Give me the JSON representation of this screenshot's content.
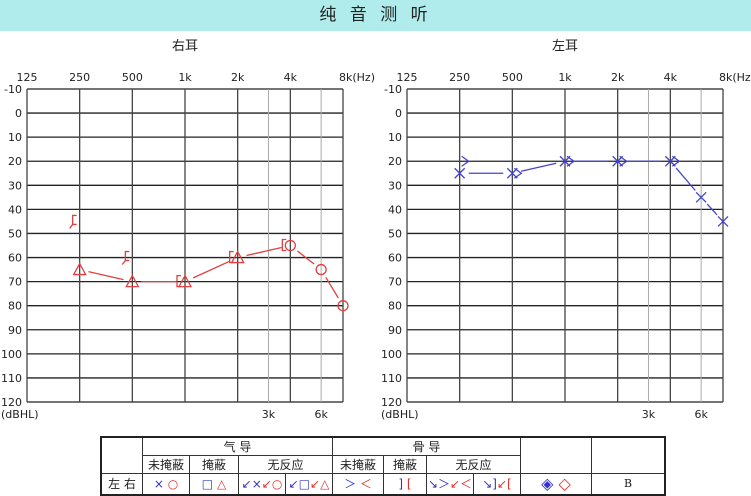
{
  "header": {
    "title": "纯 音 测 听"
  },
  "chart_data": [
    {
      "type": "line",
      "title": "右耳",
      "xlabel": "(Hz)",
      "ylabel": "(dBHL)",
      "x_ticks": [
        "125",
        "250",
        "500",
        "1k",
        "2k",
        "4k",
        "8k(Hz)"
      ],
      "x_sub_ticks": [
        "3k",
        "6k"
      ],
      "y_ticks": [
        "-10",
        "0",
        "10",
        "20",
        "30",
        "40",
        "50",
        "60",
        "70",
        "80",
        "90",
        "100",
        "110",
        "120"
      ],
      "ylim": [
        -10,
        120
      ],
      "y_inverted": true,
      "x_scale": "log2",
      "grid": true,
      "color": "#e04040",
      "series": [
        {
          "kind": "air-masked",
          "marker": "triangle",
          "points": [
            [
              250,
              65
            ],
            [
              500,
              70
            ],
            [
              1000,
              70
            ],
            [
              2000,
              60
            ]
          ]
        },
        {
          "kind": "air-unmasked",
          "marker": "circle",
          "points": [
            [
              4000,
              55
            ],
            [
              6000,
              65
            ],
            [
              8000,
              80
            ]
          ]
        },
        {
          "kind": "bone-masked",
          "marker": "bracket-left",
          "points": [
            [
              1000,
              70
            ],
            [
              2000,
              60
            ],
            [
              4000,
              55
            ]
          ]
        },
        {
          "kind": "bone-masked-no-response",
          "marker": "bracket-left-arrow",
          "points": [
            [
              250,
              45
            ],
            [
              500,
              60
            ]
          ]
        }
      ],
      "air_line": [
        [
          250,
          65
        ],
        [
          500,
          70
        ],
        [
          1000,
          70
        ],
        [
          2000,
          60
        ],
        [
          4000,
          55
        ],
        [
          6000,
          65
        ],
        [
          8000,
          80
        ]
      ]
    },
    {
      "type": "line",
      "title": "左耳",
      "xlabel": "(Hz)",
      "ylabel": "(dBHL)",
      "x_ticks": [
        "125",
        "250",
        "500",
        "1k",
        "2k",
        "4k",
        "8k(Hz)"
      ],
      "x_sub_ticks": [
        "3k",
        "6k"
      ],
      "y_ticks": [
        "-10",
        "0",
        "10",
        "20",
        "30",
        "40",
        "50",
        "60",
        "70",
        "80",
        "90",
        "100",
        "110",
        "120"
      ],
      "ylim": [
        -10,
        120
      ],
      "y_inverted": true,
      "x_scale": "log2",
      "grid": true,
      "color": "#4444cc",
      "series": [
        {
          "kind": "air-unmasked",
          "marker": "x",
          "points": [
            [
              250,
              25
            ],
            [
              500,
              25
            ],
            [
              1000,
              20
            ],
            [
              2000,
              20
            ],
            [
              4000,
              20
            ],
            [
              6000,
              35
            ],
            [
              8000,
              45
            ]
          ]
        },
        {
          "kind": "bone-unmasked",
          "marker": "angle-right",
          "points": [
            [
              250,
              20
            ],
            [
              500,
              25
            ],
            [
              1000,
              20
            ],
            [
              2000,
              20
            ],
            [
              4000,
              20
            ]
          ]
        }
      ],
      "air_line": [
        [
          250,
          25
        ],
        [
          500,
          25
        ],
        [
          1000,
          20
        ],
        [
          2000,
          20
        ],
        [
          4000,
          20
        ],
        [
          6000,
          35
        ],
        [
          8000,
          45
        ]
      ]
    }
  ],
  "legend": {
    "air": "气 导",
    "bone": "骨 导",
    "unmasked": "未掩蔽",
    "masked": "掩蔽",
    "no_response": "无反应",
    "left_right": "左 右",
    "air_unmasked": [
      "×",
      "○"
    ],
    "air_masked": [
      "□",
      "△"
    ],
    "air_nr_unmasked": [
      "↙×",
      "↙○"
    ],
    "air_nr_masked": [
      "↙□",
      "↙△"
    ],
    "bone_unmasked": [
      "＞",
      "＜"
    ],
    "bone_masked": [
      "]",
      "["
    ],
    "bone_nr_unmasked": [
      "↘＞",
      "↙＜"
    ],
    "bone_nr_masked": [
      "↘]",
      "↙["
    ],
    "sound_field": [
      "◈",
      "◇"
    ],
    "last": "B"
  }
}
